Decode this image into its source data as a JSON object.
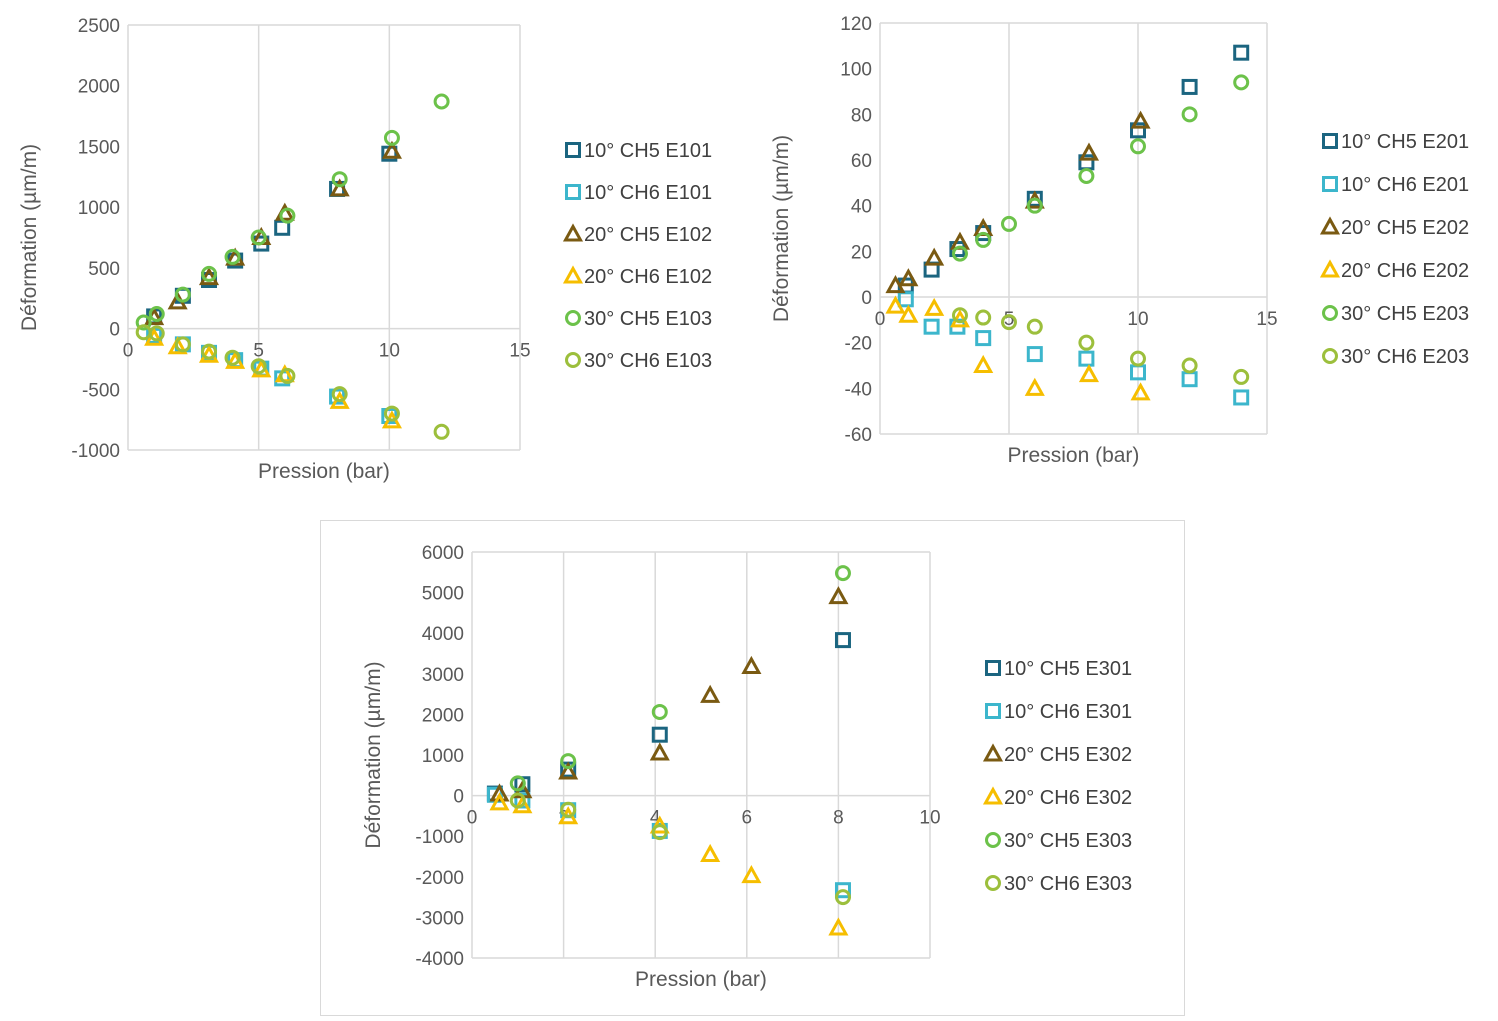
{
  "colors": {
    "ch5_10": "#1b6580",
    "ch6_10": "#3cb6cc",
    "ch5_20": "#7a5a12",
    "ch6_20": "#f6be00",
    "ch5_30": "#6cc24a",
    "ch6_30": "#9cbf3c",
    "grid": "#d9d9d9"
  },
  "chart_data": [
    {
      "type": "scatter",
      "xlabel": "Pression (bar)",
      "ylabel": "Déformation (µm/m)",
      "xlim": [
        0,
        15
      ],
      "ylim": [
        -1000,
        2500
      ],
      "xticks": [
        "0",
        "5",
        "10",
        "15"
      ],
      "yticks": [
        "2500",
        "2000",
        "1500",
        "1000",
        "500",
        "0",
        "-500",
        "-1000"
      ],
      "grid": "vertical",
      "legend": "right",
      "series": [
        {
          "name": "10° CH5 E101",
          "marker": "square",
          "color_key": "ch5_10",
          "x": [
            1,
            2.1,
            3.1,
            4.1,
            5.1,
            5.9,
            8,
            10
          ],
          "y": [
            100,
            270,
            400,
            560,
            700,
            830,
            1150,
            1440
          ]
        },
        {
          "name": "10° CH6 E101",
          "marker": "square",
          "color_key": "ch6_10",
          "x": [
            1,
            2.1,
            3.1,
            4.1,
            5.1,
            5.9,
            8,
            10
          ],
          "y": [
            -60,
            -130,
            -200,
            -260,
            -330,
            -410,
            -560,
            -720
          ]
        },
        {
          "name": "20° CH5 E102",
          "marker": "triangle",
          "color_key": "ch5_20",
          "x": [
            1,
            1.9,
            3.1,
            4.1,
            5.1,
            6,
            8.1,
            10.1
          ],
          "y": [
            90,
            220,
            420,
            580,
            750,
            950,
            1150,
            1460
          ]
        },
        {
          "name": "20° CH6 E102",
          "marker": "triangle",
          "color_key": "ch6_20",
          "x": [
            1,
            1.9,
            3.1,
            4.1,
            5.1,
            6,
            8.1,
            10.1
          ],
          "y": [
            -80,
            -150,
            -220,
            -270,
            -340,
            -380,
            -600,
            -760
          ]
        },
        {
          "name": "30° CH5 E103",
          "marker": "circle",
          "color_key": "ch5_30",
          "x": [
            0.6,
            1.1,
            2.1,
            3.1,
            4,
            5,
            6.1,
            8.1,
            10.1,
            12
          ],
          "y": [
            50,
            120,
            280,
            450,
            590,
            750,
            930,
            1230,
            1570,
            1870
          ]
        },
        {
          "name": "30° CH6 E103",
          "marker": "circle",
          "color_key": "ch6_30",
          "x": [
            0.6,
            1.1,
            2.1,
            3.1,
            4,
            5,
            6.1,
            8.1,
            10.1,
            12
          ],
          "y": [
            -30,
            -40,
            -130,
            -190,
            -240,
            -310,
            -390,
            -540,
            -700,
            -850
          ]
        }
      ]
    },
    {
      "type": "scatter",
      "xlabel": "Pression (bar)",
      "ylabel": "Déformation (µm/m)",
      "xlim": [
        0,
        15
      ],
      "ylim": [
        -60,
        120
      ],
      "xticks": [
        "0",
        "5",
        "10",
        "15"
      ],
      "yticks": [
        "120",
        "100",
        "80",
        "60",
        "40",
        "20",
        "0",
        "-20",
        "-40",
        "-60"
      ],
      "grid": "vertical",
      "legend": "right",
      "series": [
        {
          "name": "10° CH5 E201",
          "marker": "square",
          "color_key": "ch5_10",
          "x": [
            1,
            2,
            3,
            4,
            6,
            8,
            10,
            12,
            14
          ],
          "y": [
            5,
            12,
            21,
            28,
            43,
            59,
            73,
            92,
            107
          ]
        },
        {
          "name": "10° CH6 E201",
          "marker": "square",
          "color_key": "ch6_10",
          "x": [
            1,
            2,
            3,
            4,
            6,
            8,
            10,
            12,
            14
          ],
          "y": [
            -1,
            -13,
            -13,
            -18,
            -25,
            -27,
            -33,
            -36,
            -44
          ]
        },
        {
          "name": "20° CH5 E202",
          "marker": "triangle",
          "color_key": "ch5_20",
          "x": [
            0.6,
            1.1,
            2.1,
            3.1,
            4,
            6,
            8.1,
            10.1
          ],
          "y": [
            5,
            8,
            17,
            24,
            30,
            42,
            63,
            77
          ]
        },
        {
          "name": "20° CH6 E202",
          "marker": "triangle",
          "color_key": "ch6_20",
          "x": [
            0.6,
            1.1,
            2.1,
            3.1,
            4,
            6,
            8.1,
            10.1
          ],
          "y": [
            -4,
            -8,
            -5,
            -10,
            -30,
            -40,
            -34,
            -42
          ]
        },
        {
          "name": "30° CH5 E203",
          "marker": "circle",
          "color_key": "ch5_30",
          "x": [
            3.1,
            4,
            5,
            6,
            8,
            10,
            12,
            14
          ],
          "y": [
            19,
            25,
            32,
            40,
            53,
            66,
            80,
            94
          ]
        },
        {
          "name": "30° CH6 E203",
          "marker": "circle",
          "color_key": "ch6_30",
          "x": [
            3.1,
            4,
            5,
            6,
            8,
            10,
            12,
            14
          ],
          "y": [
            -8,
            -9,
            -11,
            -13,
            -20,
            -27,
            -30,
            -35
          ]
        }
      ]
    },
    {
      "type": "scatter",
      "xlabel": "Pression (bar)",
      "ylabel": "Déformation (µm/m)",
      "xlim": [
        0,
        10
      ],
      "ylim": [
        -4000,
        6000
      ],
      "xticks": [
        "0",
        "2",
        "4",
        "6",
        "8",
        "10"
      ],
      "yticks": [
        "6000",
        "5000",
        "4000",
        "3000",
        "2000",
        "1000",
        "0",
        "-1000",
        "-2000",
        "-3000",
        "-4000"
      ],
      "grid": "vertical",
      "legend": "right",
      "series": [
        {
          "name": "10° CH5 E301",
          "marker": "square",
          "color_key": "ch5_10",
          "x": [
            0.5,
            1.1,
            2.1,
            4.1,
            8.1
          ],
          "y": [
            50,
            280,
            640,
            1500,
            3830
          ]
        },
        {
          "name": "10° CH6 E301",
          "marker": "square",
          "color_key": "ch6_10",
          "x": [
            0.5,
            1.1,
            2.1,
            4.1,
            8.1
          ],
          "y": [
            20,
            -120,
            -360,
            -870,
            -2330
          ]
        },
        {
          "name": "20° CH5 E302",
          "marker": "triangle",
          "color_key": "ch5_20",
          "x": [
            0.6,
            1.1,
            2.1,
            4.1,
            5.2,
            6.1,
            8
          ],
          "y": [
            40,
            120,
            580,
            1050,
            2470,
            3180,
            4900
          ]
        },
        {
          "name": "20° CH6 E302",
          "marker": "triangle",
          "color_key": "ch6_20",
          "x": [
            0.6,
            1.1,
            2.1,
            4.1,
            5.2,
            6.1,
            8
          ],
          "y": [
            -180,
            -250,
            -520,
            -750,
            -1450,
            -1970,
            -3260
          ]
        },
        {
          "name": "30° CH5 E303",
          "marker": "circle",
          "color_key": "ch5_30",
          "x": [
            1,
            2.1,
            4.1,
            8.1
          ],
          "y": [
            300,
            850,
            2060,
            5480
          ]
        },
        {
          "name": "30° CH6 E303",
          "marker": "circle",
          "color_key": "ch6_30",
          "x": [
            1,
            2.1,
            4.1,
            8.1
          ],
          "y": [
            -120,
            -350,
            -900,
            -2500
          ]
        }
      ]
    }
  ]
}
